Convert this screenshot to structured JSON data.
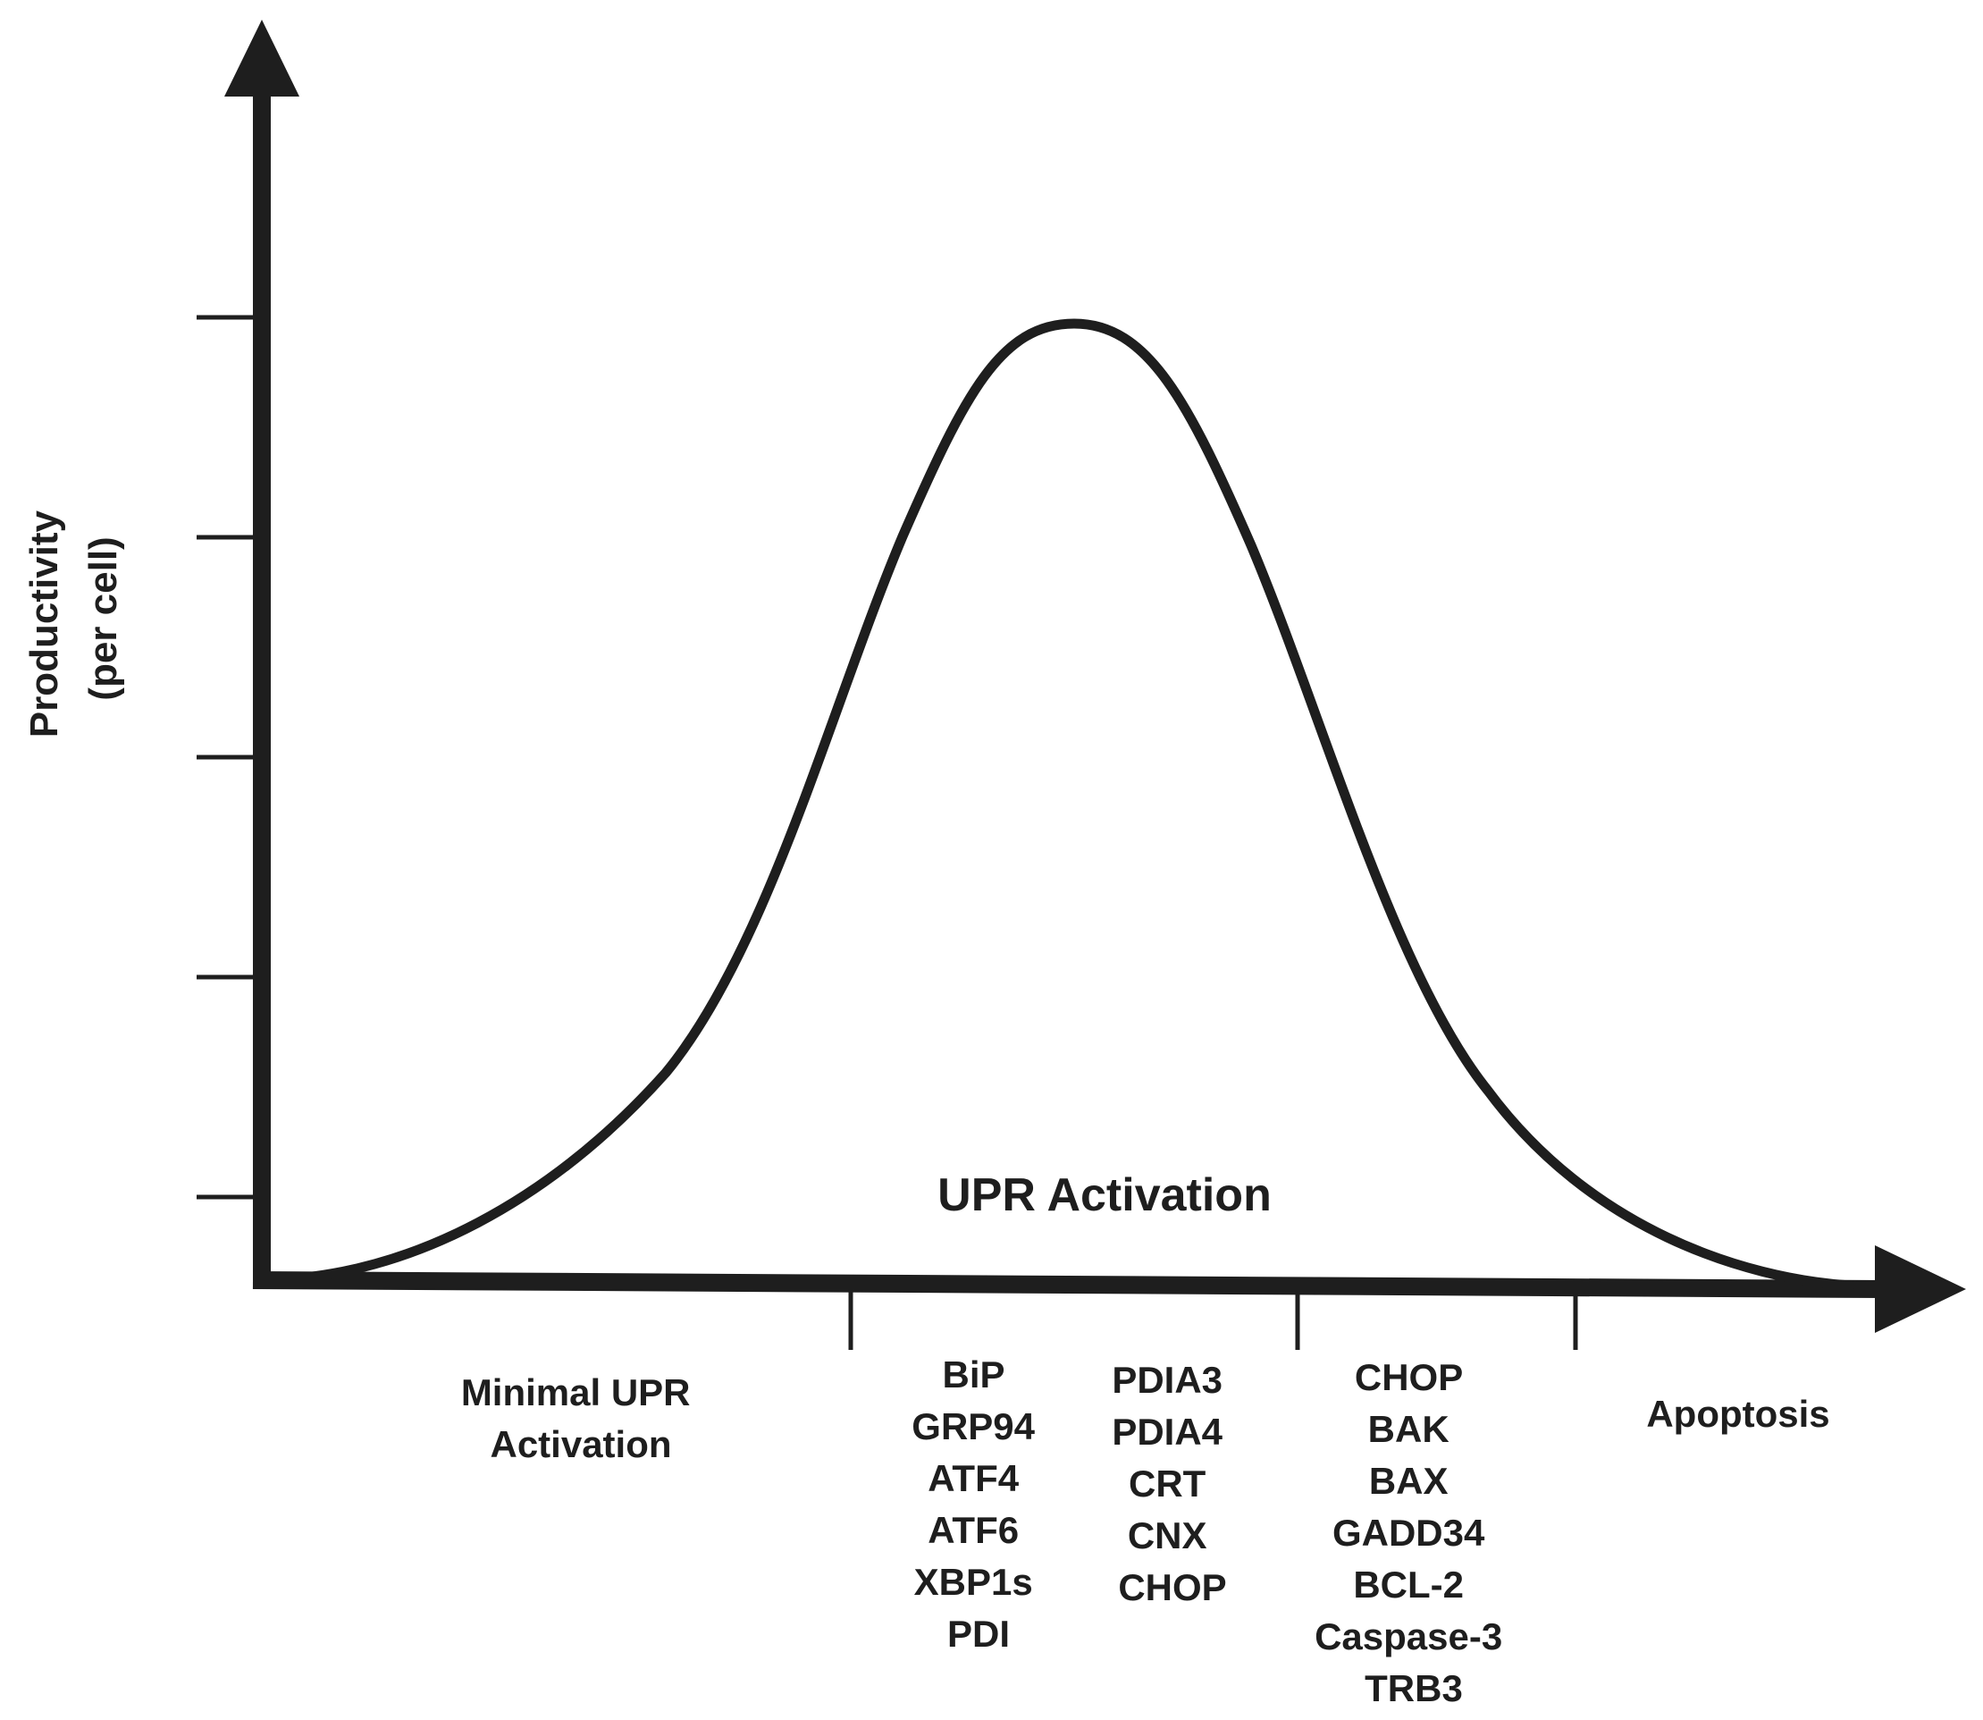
{
  "y_axis_label": [
    "Productivity",
    "(per cell)"
  ],
  "x_axis_label": "UPR Activation",
  "regions": [
    {
      "id": "minimal",
      "lines": [
        "Minimal UPR",
        "Activation"
      ]
    },
    {
      "id": "adaptive-1",
      "lines": [
        "BiP",
        "GRP94",
        "ATF4",
        "ATF6",
        "XBP1s",
        "PDI"
      ]
    },
    {
      "id": "adaptive-2",
      "lines": [
        "PDIA3",
        "PDIA4",
        "CRT",
        "CNX",
        "CHOP"
      ]
    },
    {
      "id": "terminal",
      "lines": [
        "CHOP",
        "BAK",
        "BAX",
        "GADD34",
        "BCL-2",
        "Caspase-3",
        "TRB3"
      ]
    },
    {
      "id": "apoptosis",
      "lines": [
        "Apoptosis"
      ]
    }
  ],
  "colors": {
    "ink": "#1e1e1e",
    "background": "#ffffff"
  }
}
